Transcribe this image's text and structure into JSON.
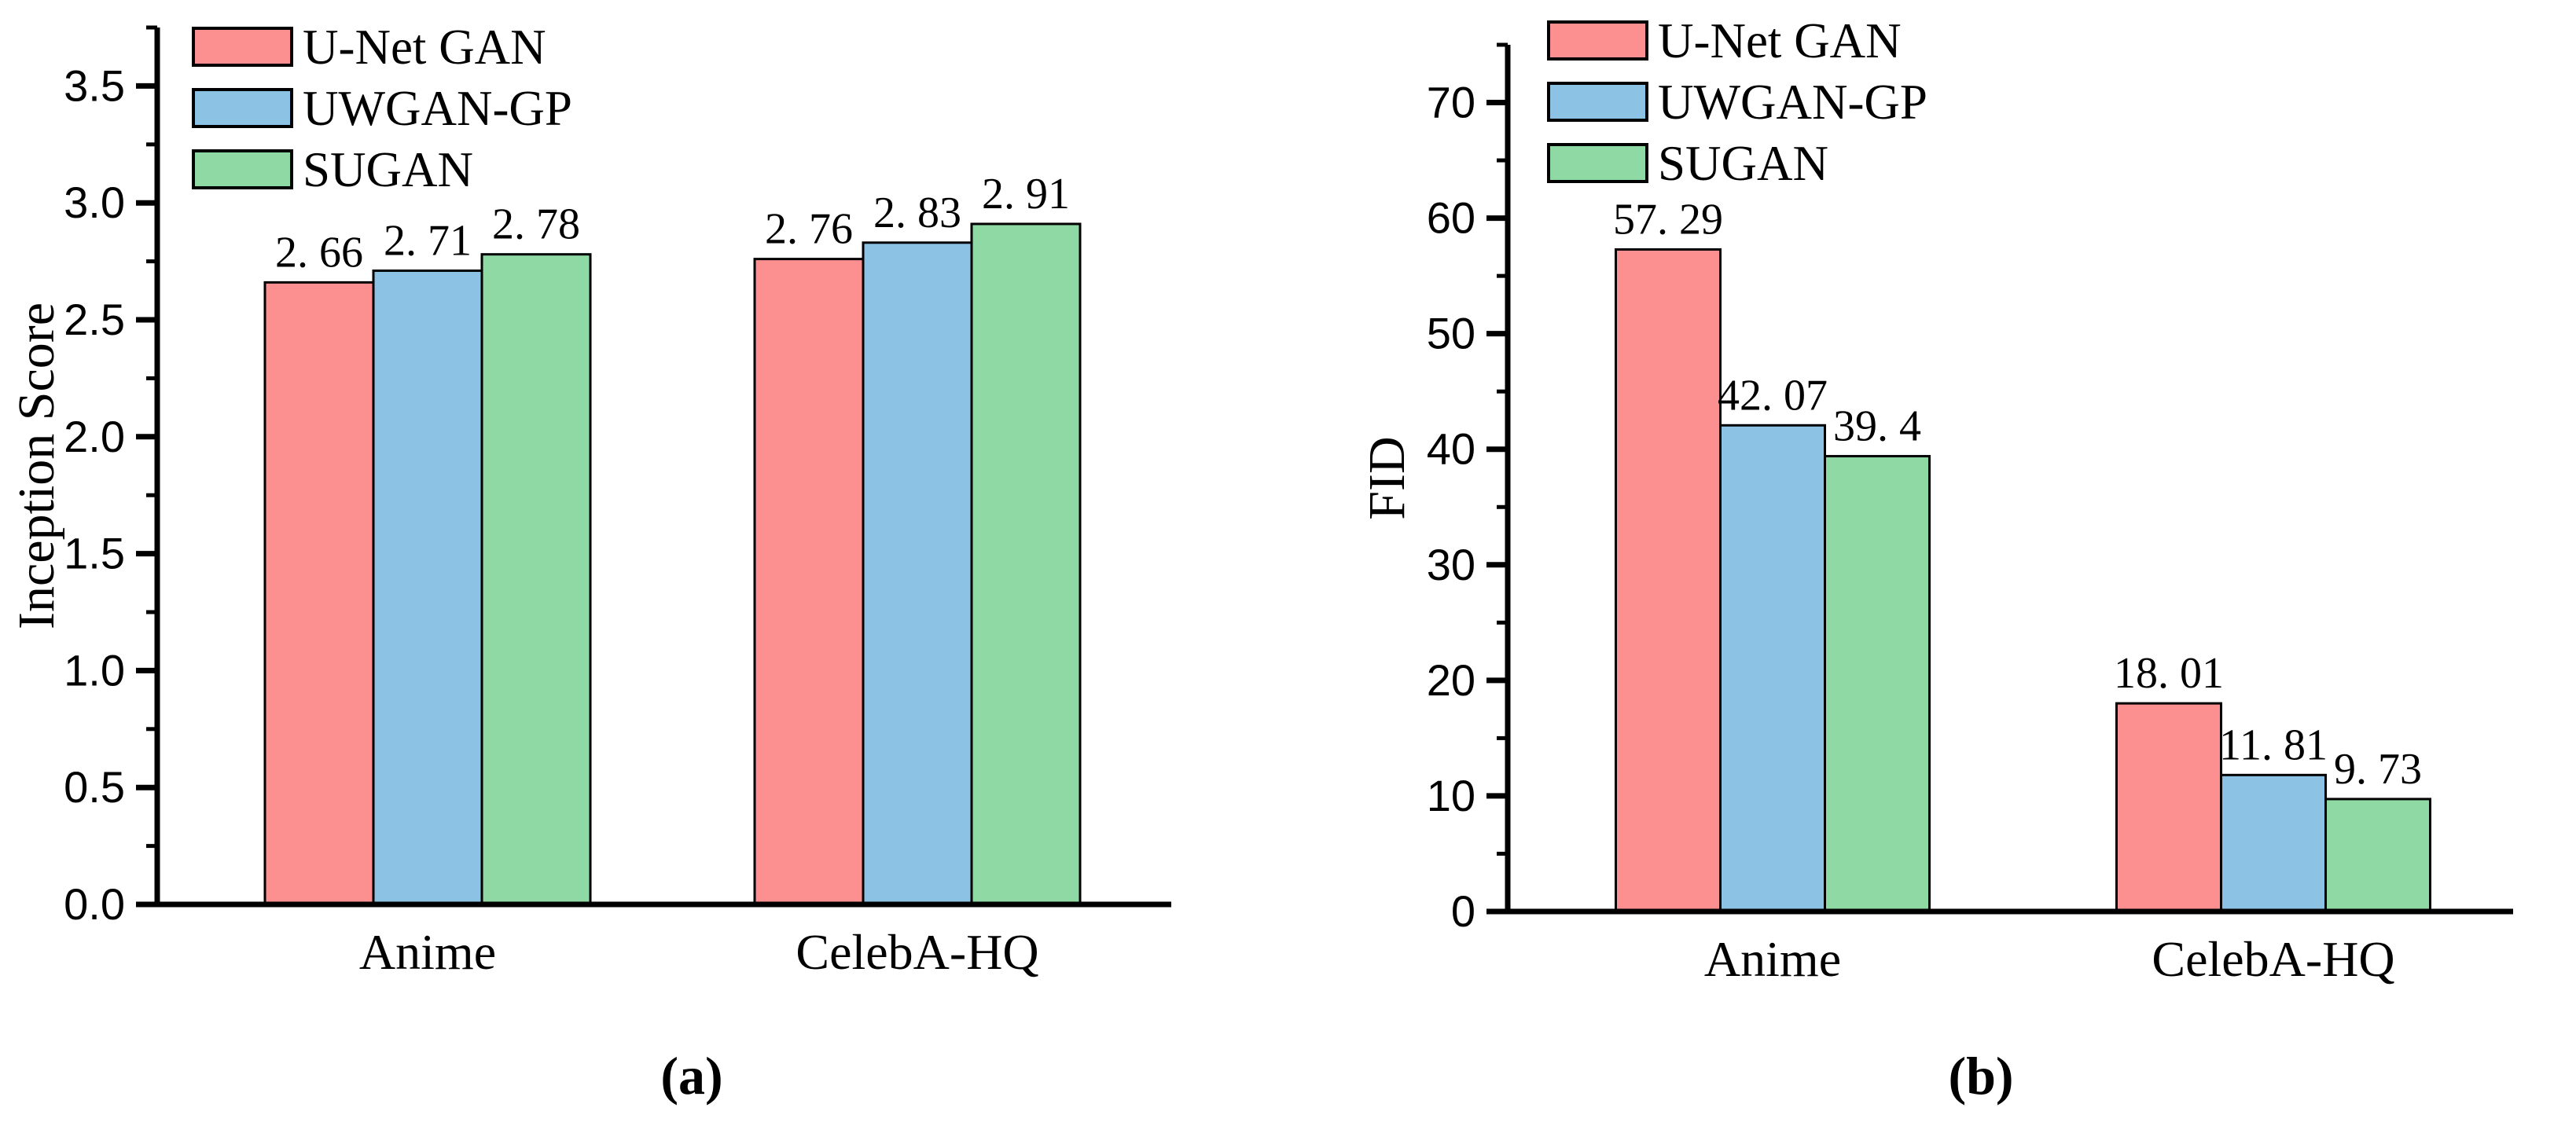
{
  "figure": {
    "background": "#ffffff",
    "text_color": "#000000",
    "axis_color": "#000000"
  },
  "chart_data": [
    {
      "type": "bar",
      "panel": "a",
      "caption": "(a)",
      "title": "",
      "xlabel": "",
      "ylabel": "Inception Score",
      "categories": [
        "Anime",
        "CelebA-HQ"
      ],
      "series": [
        {
          "name": "U-Net GAN",
          "color": "#FC9091",
          "values": [
            2.66,
            2.76
          ],
          "labels": [
            "2. 66",
            "2. 76"
          ]
        },
        {
          "name": "UWGAN-GP",
          "color": "#8CC2E4",
          "values": [
            2.71,
            2.83
          ],
          "labels": [
            "2. 71",
            "2. 83"
          ]
        },
        {
          "name": "SUGAN",
          "color": "#8FD9A5",
          "values": [
            2.78,
            2.91
          ],
          "labels": [
            "2. 78",
            "2. 91"
          ]
        }
      ],
      "ylim": [
        0,
        3.75
      ],
      "yticks": [
        0.0,
        0.5,
        1.0,
        1.5,
        2.0,
        2.5,
        3.0,
        3.5
      ],
      "ytick_labels": [
        "0.0",
        "0.5",
        "1.0",
        "1.5",
        "2.0",
        "2.5",
        "3.0",
        "3.5"
      ],
      "minor_step": 0.25,
      "grid": false,
      "legend_position": "top-left",
      "bar_outline": "#000000"
    },
    {
      "type": "bar",
      "panel": "b",
      "caption": "(b)",
      "title": "",
      "xlabel": "",
      "ylabel": "FID",
      "categories": [
        "Anime",
        "CelebA-HQ"
      ],
      "series": [
        {
          "name": "U-Net GAN",
          "color": "#FC9091",
          "values": [
            57.29,
            18.01
          ],
          "labels": [
            "57. 29",
            "18. 01"
          ]
        },
        {
          "name": "UWGAN-GP",
          "color": "#8CC2E4",
          "values": [
            42.07,
            11.81
          ],
          "labels": [
            "42. 07",
            "11. 81"
          ]
        },
        {
          "name": "SUGAN",
          "color": "#8FD9A5",
          "values": [
            39.4,
            9.73
          ],
          "labels": [
            "39. 4",
            "9. 73"
          ]
        }
      ],
      "ylim": [
        0,
        75
      ],
      "yticks": [
        0,
        10,
        20,
        30,
        40,
        50,
        60,
        70
      ],
      "ytick_labels": [
        "0",
        "10",
        "20",
        "30",
        "40",
        "50",
        "60",
        "70"
      ],
      "minor_step": 5,
      "grid": false,
      "legend_position": "top-left",
      "bar_outline": "#000000"
    }
  ]
}
